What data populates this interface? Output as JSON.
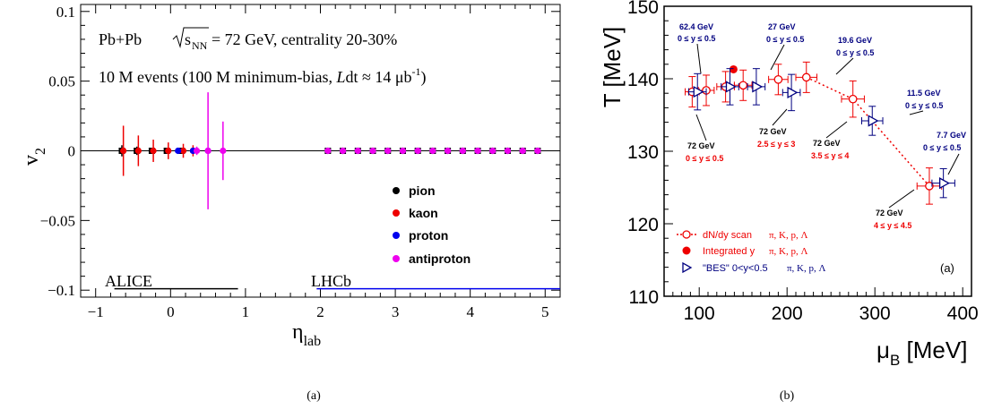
{
  "chart_data": [
    {
      "type": "scatter",
      "panel_caption": "(a)",
      "xlabel": "η",
      "xlabel_sub": "lab",
      "ylabel": "v",
      "ylabel_sub": "2",
      "xlim": [
        -1.2,
        5.2
      ],
      "ylim": [
        -0.105,
        0.105
      ],
      "xticks": [
        -1,
        0,
        1,
        2,
        3,
        4,
        5
      ],
      "xtick_labels": [
        "−1",
        "0",
        "1",
        "2",
        "3",
        "4",
        "5"
      ],
      "yticks": [
        -0.1,
        -0.05,
        0,
        0.05,
        0.1
      ],
      "ytick_labels": [
        "−0.1",
        "−0.05",
        "0",
        "0.05",
        "0.1"
      ],
      "annotations": {
        "line1_a": "Pb+Pb ",
        "line1_s": "s",
        "line1_sub": "NN",
        "line1_b": " = 72 GeV, centrality 20-30%",
        "line2_a": "10 M events (100 M minimum-bias, ",
        "line2_L": "L",
        "line2_b": "dt ≈ 14 μb",
        "line2_sup": "-1",
        "line2_c": ")"
      },
      "reference_line": 0,
      "acceptance": [
        {
          "name": "ALICE",
          "range": [
            -0.75,
            0.9
          ],
          "color": "#000000"
        },
        {
          "name": "LHCb",
          "range": [
            1.95,
            5.2
          ],
          "color": "#0000ee"
        }
      ],
      "legend": {
        "position": "bottom-right"
      },
      "series": [
        {
          "name": "pion",
          "color": "#000000",
          "marker": "square",
          "x": [
            -0.65,
            -0.45,
            -0.25,
            -0.05,
            0.15,
            2.1,
            2.3,
            2.5,
            2.7,
            2.9,
            3.1,
            3.3,
            3.5,
            3.7,
            3.9,
            4.1,
            4.3,
            4.5,
            4.7,
            4.9
          ],
          "y": [
            0,
            0,
            0,
            0,
            0,
            0,
            0,
            0,
            0,
            0,
            0,
            0,
            0,
            0,
            0,
            0,
            0,
            0,
            0,
            0
          ],
          "err": [
            0.004,
            0.003,
            0.002,
            0.002,
            0.002,
            0,
            0,
            0,
            0,
            0,
            0,
            0,
            0,
            0,
            0,
            0,
            0,
            0,
            0,
            0
          ]
        },
        {
          "name": "kaon",
          "color": "#ee0000",
          "marker": "circle",
          "x": [
            -0.63,
            -0.43,
            -0.23,
            -0.03,
            0.17,
            0.3,
            2.1,
            2.3,
            2.5,
            2.7,
            2.9,
            3.1,
            3.3,
            3.5,
            3.7,
            3.9,
            4.1,
            4.3,
            4.5,
            4.7,
            4.9
          ],
          "y": [
            0,
            0,
            0,
            0,
            0,
            0,
            0,
            0,
            0,
            0,
            0,
            0,
            0,
            0,
            0,
            0,
            0,
            0,
            0,
            0,
            0
          ],
          "err": [
            0.018,
            0.011,
            0.008,
            0.006,
            0.005,
            0.004,
            0,
            0,
            0,
            0,
            0,
            0,
            0,
            0,
            0,
            0,
            0,
            0,
            0,
            0,
            0
          ]
        },
        {
          "name": "proton",
          "color": "#0000ee",
          "marker": "circle",
          "x": [
            0.1,
            0.3,
            0.5,
            2.1,
            2.3,
            2.5,
            2.7,
            2.9,
            3.1,
            3.3,
            3.5,
            3.7,
            3.9,
            4.1,
            4.3,
            4.5,
            4.7,
            4.9
          ],
          "y": [
            0,
            0,
            0,
            0,
            0,
            0,
            0,
            0,
            0,
            0,
            0,
            0,
            0,
            0,
            0,
            0,
            0,
            0
          ],
          "err": [
            0.002,
            0.002,
            0.002,
            0,
            0,
            0,
            0,
            0,
            0,
            0,
            0,
            0,
            0,
            0,
            0,
            0,
            0,
            0
          ]
        },
        {
          "name": "antiproton",
          "color": "#ee00ee",
          "marker": "circle",
          "x": [
            0.35,
            0.5,
            0.7,
            2.1,
            2.3,
            2.5,
            2.7,
            2.9,
            3.1,
            3.3,
            3.5,
            3.7,
            3.9,
            4.1,
            4.3,
            4.5,
            4.7,
            4.9
          ],
          "y": [
            0,
            0,
            0,
            0,
            0,
            0,
            0,
            0,
            0,
            0,
            0,
            0,
            0,
            0,
            0,
            0,
            0,
            0
          ],
          "err": [
            0.003,
            0.042,
            0.021,
            0,
            0,
            0,
            0,
            0,
            0,
            0,
            0,
            0,
            0,
            0,
            0,
            0,
            0,
            0
          ]
        }
      ]
    },
    {
      "type": "scatter",
      "panel_caption": "(b)",
      "panel_tag": "(a)",
      "xlabel": "μ",
      "xlabel_sub": "B",
      "xlabel_unit": " [MeV]",
      "ylabel": "T [MeV]",
      "xlim": [
        60,
        410
      ],
      "ylim": [
        110,
        150
      ],
      "xticks": [
        100,
        200,
        300,
        400
      ],
      "xtick_labels": [
        "100",
        "200",
        "300",
        "400"
      ],
      "yticks": [
        110,
        120,
        130,
        140,
        150
      ],
      "ytick_labels": [
        "110",
        "120",
        "130",
        "140",
        "150"
      ],
      "legend": {
        "position": "bottom-left",
        "entries": [
          {
            "label": "dN/dy scan",
            "particles": "π, K, p, Λ",
            "style": "open-circle-dotted",
            "color": "#ee0000"
          },
          {
            "label": "Integrated y",
            "particles": "π, K, p, Λ",
            "style": "filled-circle",
            "color": "#ee0000"
          },
          {
            "label": "\"BES\" 0<y<0.5",
            "particles": "π, K, p, Λ",
            "style": "open-triangle",
            "color": "#000080"
          }
        ]
      },
      "series": [
        {
          "name": "dN/dy scan",
          "color": "#ee0000",
          "marker": "open-circle",
          "connect": true,
          "x": [
            92,
            108,
            130,
            150,
            190,
            222,
            275,
            362
          ],
          "y": [
            138.2,
            138.4,
            138.9,
            139.1,
            139.9,
            140.2,
            137.2,
            125.2
          ],
          "xerr": [
            8,
            9,
            10,
            10,
            11,
            12,
            13,
            14
          ],
          "yerr": [
            2.1,
            2.1,
            2.1,
            2.1,
            2.1,
            2.1,
            2.5,
            2.5
          ]
        },
        {
          "name": "Integrated y",
          "color": "#ee0000",
          "marker": "filled-circle",
          "x": [
            139
          ],
          "y": [
            141.3
          ],
          "xerr": [
            0
          ],
          "yerr": [
            0
          ]
        },
        {
          "name": "\"BES\" 0<y<0.5",
          "color": "#000080",
          "marker": "open-triangle",
          "x": [
            98,
            135,
            165,
            205,
            297,
            378
          ],
          "y": [
            138.2,
            138.9,
            138.9,
            138.1,
            134.2,
            125.6
          ],
          "xerr": [
            10,
            10,
            10,
            10,
            12,
            13
          ],
          "yerr": [
            2.5,
            2.5,
            2.5,
            2.5,
            2.0,
            2.0
          ]
        }
      ],
      "point_labels": [
        {
          "energy": "62.4 GeV",
          "range": "0 ≤ y ≤ 0.5",
          "color": "#000080"
        },
        {
          "energy": "27 GeV",
          "range": "0 ≤ y ≤ 0.5",
          "color": "#000080"
        },
        {
          "energy": "19.6 GeV",
          "range": "0 ≤ y ≤ 0.5",
          "color": "#000080"
        },
        {
          "energy": "11.5 GeV",
          "range": "0 ≤ y ≤ 0.5",
          "color": "#000080"
        },
        {
          "energy": "7.7 GeV",
          "range": "0 ≤ y ≤ 0.5",
          "color": "#000080"
        },
        {
          "energy": "72 GeV",
          "range": "0 ≤ y ≤ 0.5",
          "color": "#ee0000"
        },
        {
          "energy": "72 GeV",
          "range": "2.5 ≤ y ≤ 3",
          "color": "#ee0000"
        },
        {
          "energy": "72 GeV",
          "range": "3.5 ≤ y ≤ 4",
          "color": "#ee0000"
        },
        {
          "energy": "72 GeV",
          "range": "4 ≤ y ≤ 4.5",
          "color": "#ee0000"
        }
      ]
    }
  ]
}
